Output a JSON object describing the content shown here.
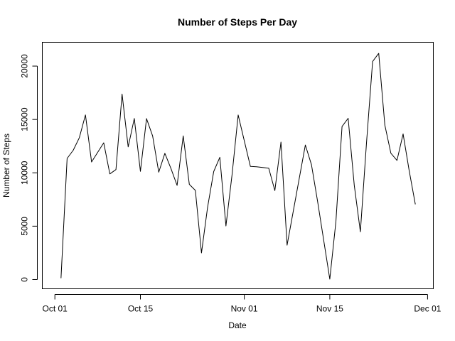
{
  "chart_data": {
    "type": "line",
    "title": "Number of Steps Per Day",
    "xlabel": "Date",
    "ylabel": "Number of Steps",
    "grid": false,
    "legend": "none",
    "line_color": "#000000",
    "xlim": [
      "2012-09-29",
      "2012-12-02"
    ],
    "ylim": [
      -900,
      22200
    ],
    "x_ticks": [
      {
        "date": "2012-10-01",
        "label": "Oct 01"
      },
      {
        "date": "2012-10-15",
        "label": "Oct 15"
      },
      {
        "date": "2012-11-01",
        "label": "Nov 01"
      },
      {
        "date": "2012-11-15",
        "label": "Nov 15"
      },
      {
        "date": "2012-12-01",
        "label": "Dec 01"
      }
    ],
    "y_ticks": [
      {
        "value": 0,
        "label": "0"
      },
      {
        "value": 5000,
        "label": "5000"
      },
      {
        "value": 10000,
        "label": "10000"
      },
      {
        "value": 15000,
        "label": "15000"
      },
      {
        "value": 20000,
        "label": "20000"
      }
    ],
    "series": [
      {
        "x": [
          "2012-10-02",
          "2012-10-03",
          "2012-10-04",
          "2012-10-05",
          "2012-10-06",
          "2012-10-07",
          "2012-10-09",
          "2012-10-10",
          "2012-10-11",
          "2012-10-12",
          "2012-10-13",
          "2012-10-14",
          "2012-10-15",
          "2012-10-16",
          "2012-10-17",
          "2012-10-18",
          "2012-10-19",
          "2012-10-20",
          "2012-10-21",
          "2012-10-22",
          "2012-10-23",
          "2012-10-24",
          "2012-10-25",
          "2012-10-26",
          "2012-10-27",
          "2012-10-28",
          "2012-10-29",
          "2012-10-30",
          "2012-10-31",
          "2012-11-02",
          "2012-11-03",
          "2012-11-05",
          "2012-11-06",
          "2012-11-07",
          "2012-11-08",
          "2012-11-11",
          "2012-11-12",
          "2012-11-13",
          "2012-11-15",
          "2012-11-16",
          "2012-11-17",
          "2012-11-18",
          "2012-11-19",
          "2012-11-20",
          "2012-11-21",
          "2012-11-22",
          "2012-11-23",
          "2012-11-24",
          "2012-11-25",
          "2012-11-26",
          "2012-11-27",
          "2012-11-28",
          "2012-11-29"
        ],
        "values": [
          126,
          11352,
          12116,
          13294,
          15420,
          11015,
          12811,
          9900,
          10304,
          17382,
          12426,
          15098,
          10139,
          15084,
          13452,
          10056,
          11829,
          10395,
          8821,
          13460,
          8918,
          8355,
          2492,
          6778,
          10119,
          11458,
          5018,
          9819,
          15414,
          10600,
          10571,
          10439,
          8334,
          12883,
          3219,
          12608,
          10765,
          7336,
          41,
          5441,
          14339,
          15110,
          8841,
          4472,
          12787,
          20427,
          21194,
          14478,
          11834,
          11162,
          13646,
          10183,
          7047
        ]
      }
    ]
  }
}
